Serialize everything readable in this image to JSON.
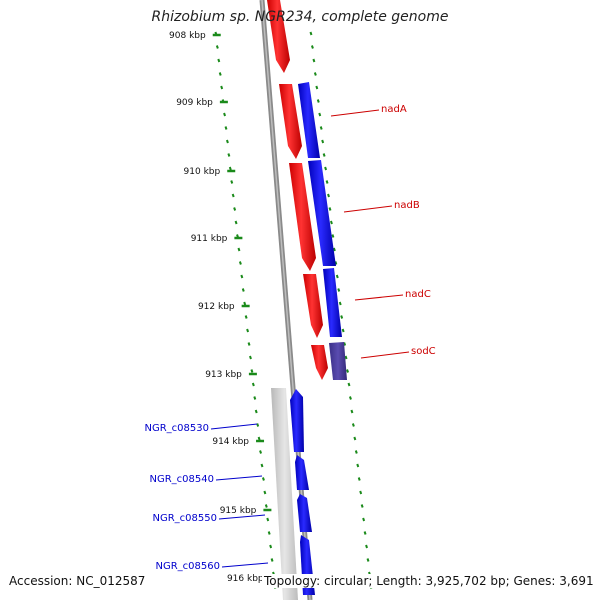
{
  "title": "Rhizobium sp. NGR234, complete genome",
  "footer": {
    "accession": "Accession: NC_012587",
    "summary": "Topology: circular; Length: 3,925,702 bp; Genes: 3,691"
  },
  "ticks": [
    {
      "label": "908 kbp",
      "bp": 908000
    },
    {
      "label": "909 kbp",
      "bp": 909000
    },
    {
      "label": "910 kbp",
      "bp": 910000
    },
    {
      "label": "911 kbp",
      "bp": 911000
    },
    {
      "label": "912 kbp",
      "bp": 912000
    },
    {
      "label": "913 kbp",
      "bp": 913000
    },
    {
      "label": "914 kbp",
      "bp": 914000
    },
    {
      "label": "915 kbp",
      "bp": 915000
    },
    {
      "label": "916 kbp",
      "bp": 916000
    }
  ],
  "gene_labels": [
    {
      "name": "nadA",
      "color": "#cc0000"
    },
    {
      "name": "nadB",
      "color": "#cc0000"
    },
    {
      "name": "nadC",
      "color": "#cc0000"
    },
    {
      "name": "sodC",
      "color": "#cc0000"
    },
    {
      "name": "NGR_c08530",
      "color": "#0000cc"
    },
    {
      "name": "NGR_c08540",
      "color": "#0000cc"
    },
    {
      "name": "NGR_c08550",
      "color": "#0000cc"
    },
    {
      "name": "NGR_c08560",
      "color": "#0000cc"
    }
  ],
  "colors": {
    "red_feature": "#ff0000",
    "blue_feature": "#0000ff",
    "purple_feature": "#4a3d99",
    "grey_feature": "#c8c8c8",
    "backbone": "#8a8a8a",
    "tick_marks": "#1a8a1a",
    "label_red": "#cc0000",
    "label_blue": "#0000cc"
  }
}
